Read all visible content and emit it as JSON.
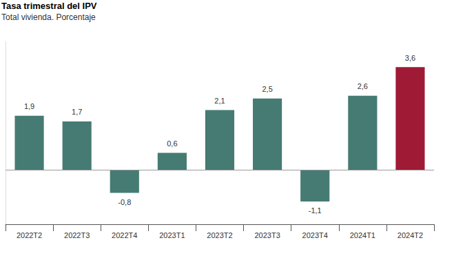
{
  "chart_data": {
    "type": "bar",
    "title": "Tasa trimestral del IPV",
    "subtitle": "Total vivienda. Porcentaje",
    "categories": [
      "2022T2",
      "2022T3",
      "2022T4",
      "2023T1",
      "2023T2",
      "2023T3",
      "2023T4",
      "2024T1",
      "2024T2"
    ],
    "values": [
      1.9,
      1.7,
      -0.8,
      0.6,
      2.1,
      2.5,
      -1.1,
      2.6,
      3.6
    ],
    "value_labels": [
      "1,9",
      "1,7",
      "-0,8",
      "0,6",
      "2,1",
      "2,5",
      "-1,1",
      "2,6",
      "3,6"
    ],
    "colors": [
      "#457b73",
      "#457b73",
      "#457b73",
      "#457b73",
      "#457b73",
      "#457b73",
      "#457b73",
      "#457b73",
      "#9e1a35"
    ],
    "ylim": [
      -1.9,
      4.5
    ],
    "yticks": [
      0
    ],
    "data_labels": true,
    "tick_labels": "x",
    "grid": true
  }
}
